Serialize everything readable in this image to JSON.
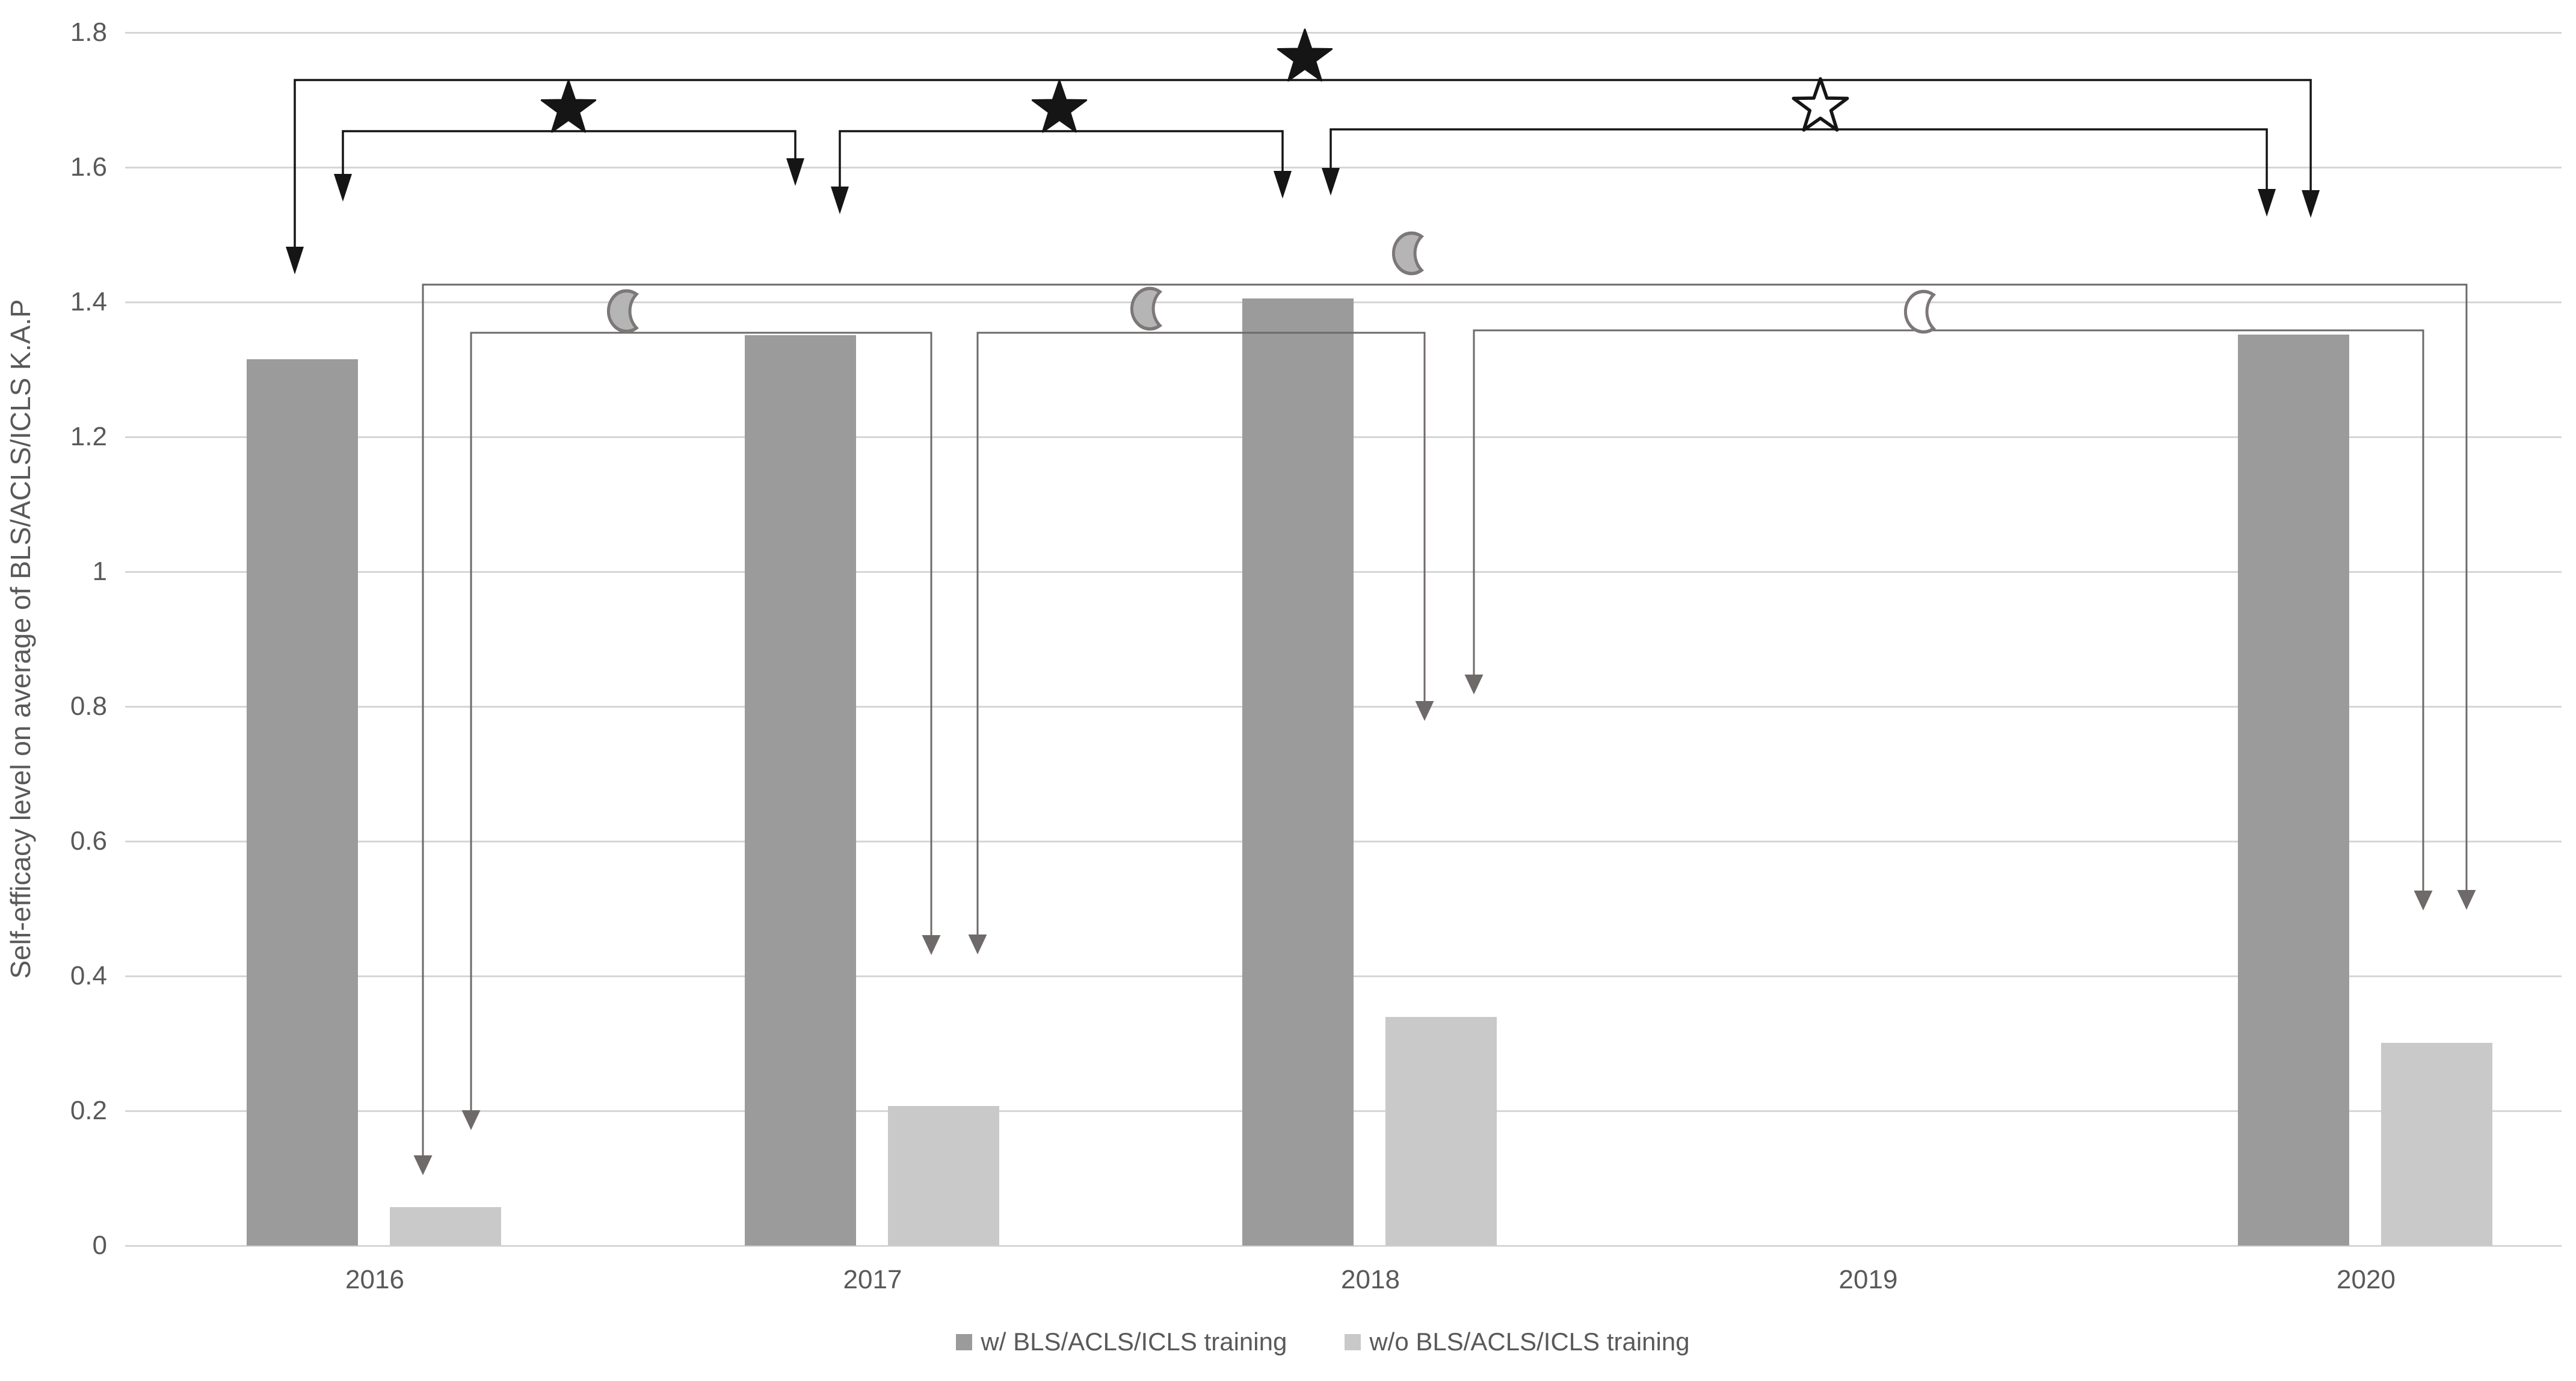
{
  "chart_data": {
    "type": "bar",
    "title": "",
    "xlabel": "",
    "ylabel": "Self-efficacy level on average of BLS/ACLS/ICLS K.A.P",
    "ylim": [
      0,
      1.8
    ],
    "ytick_labels": [
      "0",
      "0.2",
      "0.4",
      "0.6",
      "0.8",
      "1",
      "1.2",
      "1.4",
      "1.6",
      "1.8"
    ],
    "grid": true,
    "legend_position": "bottom",
    "categories": [
      "2016",
      "2017",
      "2018",
      "2019",
      "2020"
    ],
    "series": [
      {
        "name": "w/ BLS/ACLS/ICLS training",
        "color": "#9b9b9b",
        "values": [
          1.315,
          1.351,
          1.405,
          null,
          1.352
        ]
      },
      {
        "name": "w/o BLS/ACLS/ICLS training",
        "color": "#c9c9c9",
        "values": [
          0.057,
          0.207,
          0.339,
          null,
          0.301
        ]
      }
    ],
    "annotations": [
      {
        "id": "sig-2016-2020-with",
        "symbol": "star-filled",
        "color": "black",
        "compares": "2016 vs 2020 (w/ training)",
        "line_y": 133,
        "x1": 490,
        "x2": 3841,
        "sym_x": 2169,
        "sym_y": 96,
        "tip1": 456,
        "tip2": 362
      },
      {
        "id": "sig-2016-2017-with",
        "symbol": "star-filled",
        "color": "black",
        "compares": "2016 vs 2017 (w/ training)",
        "line_y": 218,
        "x1": 570,
        "x2": 1322,
        "sym_x": 945,
        "sym_y": 181,
        "tip1": 335,
        "tip2": 309
      },
      {
        "id": "sig-2017-2018-with",
        "symbol": "star-filled",
        "color": "black",
        "compares": "2017 vs 2018 (w/ training)",
        "line_y": 218,
        "x1": 1396,
        "x2": 2132,
        "sym_x": 1761,
        "sym_y": 181,
        "tip1": 356,
        "tip2": 330
      },
      {
        "id": "sig-2018-2020-with",
        "symbol": "star-open",
        "color": "black",
        "compares": "2018 vs 2020 (w/ training)",
        "line_y": 215,
        "x1": 2212,
        "x2": 3768,
        "sym_x": 3026,
        "sym_y": 178,
        "tip1": 325,
        "tip2": 360
      },
      {
        "id": "sig-2016-2020-without",
        "symbol": "moon-filled",
        "color": "gray",
        "compares": "2016 vs 2020 (w/o training)",
        "line_y": 473,
        "x1": 703,
        "x2": 4100,
        "sym_x": 2345,
        "sym_y": 421,
        "tip1": 1953,
        "tip2": 1512
      },
      {
        "id": "sig-2016-2017-without",
        "symbol": "moon-filled",
        "color": "gray",
        "compares": "2016 vs 2017 (w/o training)",
        "line_y": 553,
        "x1": 783,
        "x2": 1548,
        "sym_x": 1040,
        "sym_y": 517,
        "tip1": 1878,
        "tip2": 1587
      },
      {
        "id": "sig-2017-2018-without",
        "symbol": "moon-filled",
        "color": "gray",
        "compares": "2017 vs 2018 (w/o training)",
        "line_y": 553,
        "x1": 1625,
        "x2": 2368,
        "sym_x": 1910,
        "sym_y": 513,
        "tip1": 1586,
        "tip2": 1198
      },
      {
        "id": "sig-2018-2020-without",
        "symbol": "moon-open",
        "color": "gray",
        "compares": "2018 vs 2020 (w/o training)",
        "line_y": 549,
        "x1": 2450,
        "x2": 4028,
        "sym_x": 3196,
        "sym_y": 518,
        "tip1": 1154,
        "tip2": 1513
      }
    ]
  },
  "colors": {
    "background": "#ffffff",
    "bar_dark": "#9b9b9b",
    "bar_light": "#c9c9c9",
    "gridline": "#d6d6d6",
    "axis_text": "#595959",
    "annotation_black": "#151515",
    "annotation_gray": "#6f6a6a",
    "moon_fill": "#b5b5b5",
    "moon_stroke": "#7d7878"
  }
}
